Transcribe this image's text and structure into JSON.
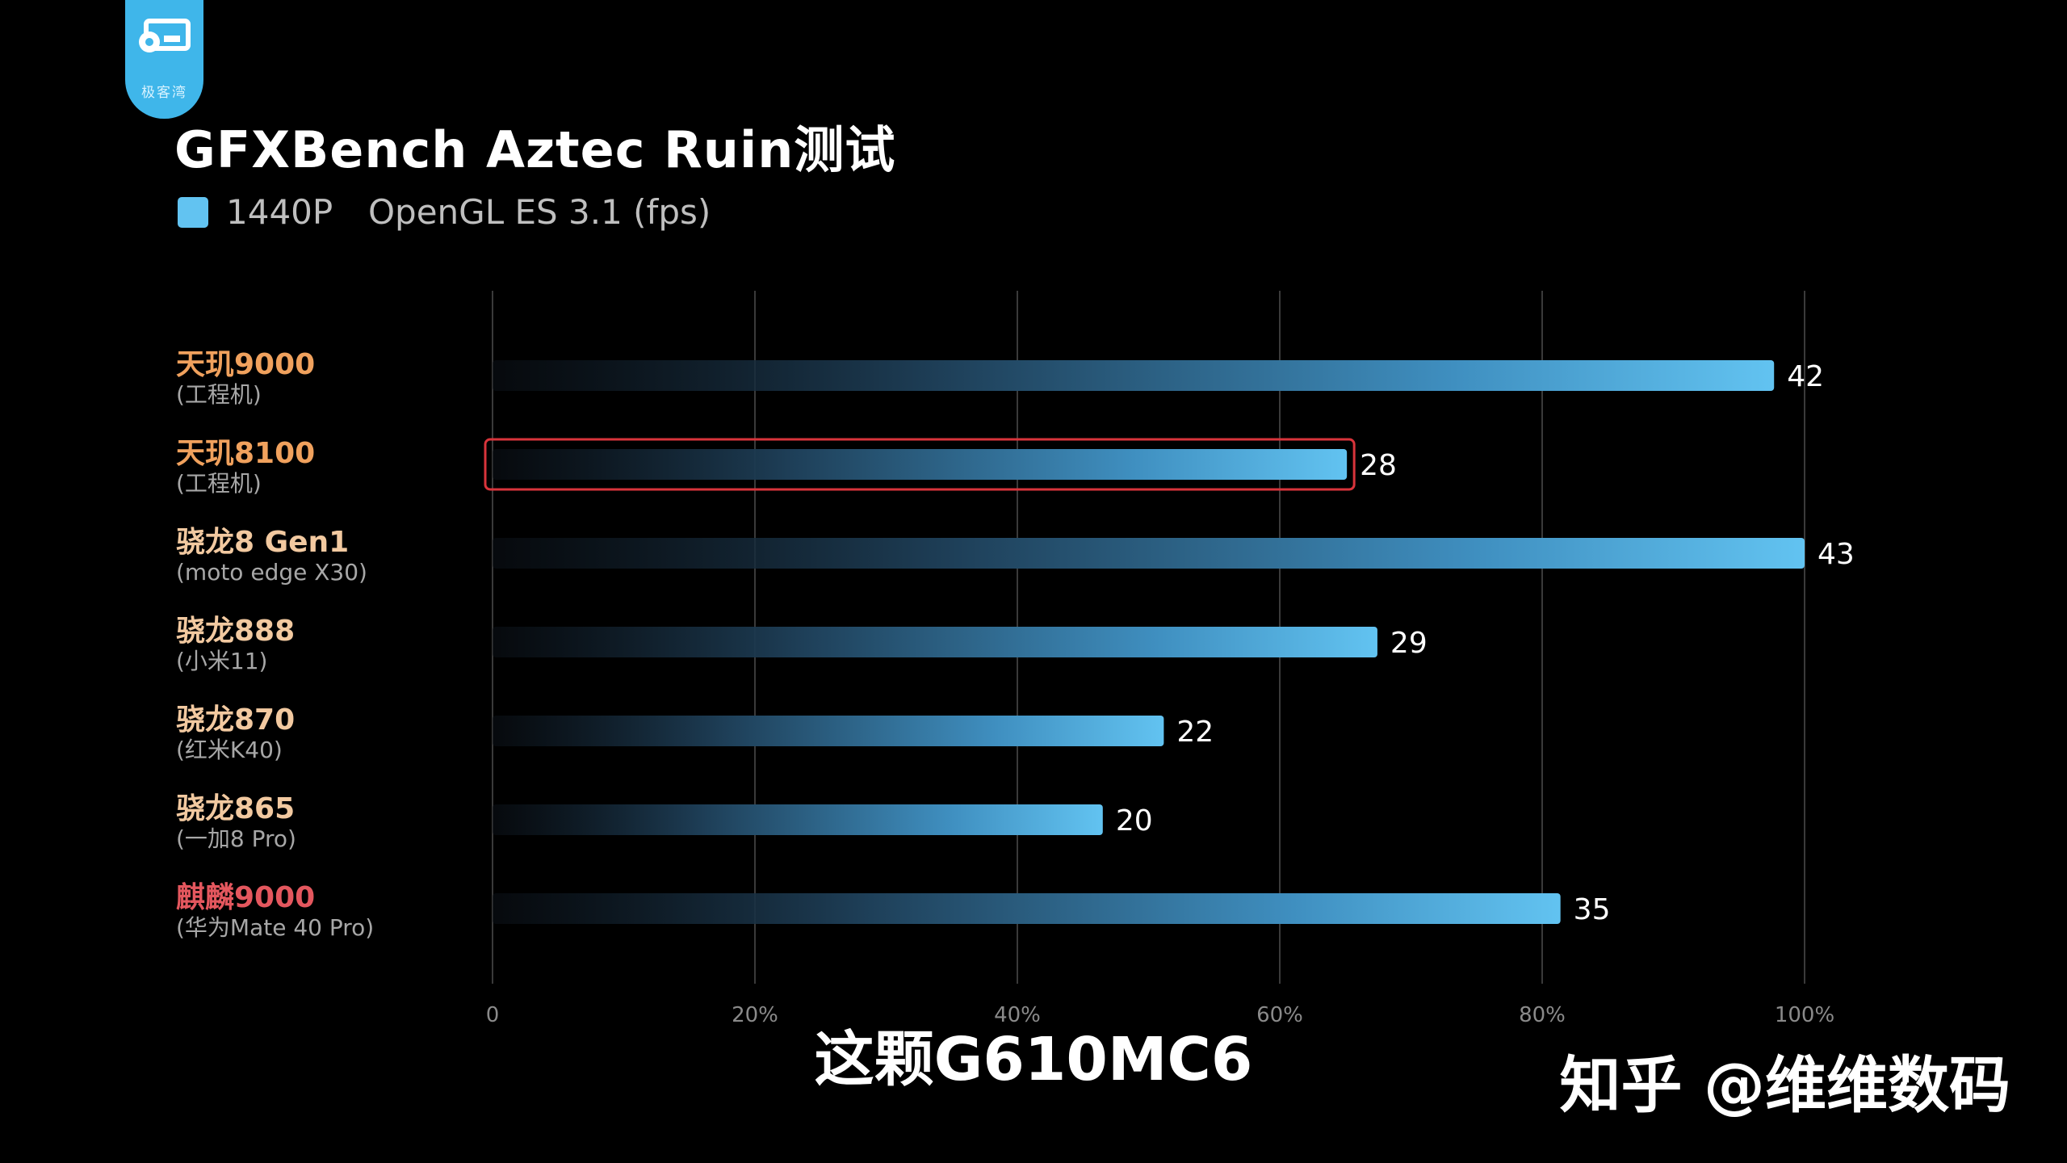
{
  "logo": {
    "text": "极客湾"
  },
  "chart_data": {
    "type": "bar",
    "orientation": "horizontal",
    "title": "GFXBench Aztec Ruin测试",
    "legend": {
      "resolution": "1440P",
      "api": "OpenGL ES 3.1 (fps)",
      "color": "#62c3f1",
      "placement": "top-left"
    },
    "categories": [
      {
        "name": "天玑9000",
        "sub": "(工程机)",
        "value": 42,
        "color": "#f0a15d",
        "highlight": false
      },
      {
        "name": "天玑8100",
        "sub": "(工程机)",
        "value": 28,
        "color": "#f0a15d",
        "highlight": true
      },
      {
        "name": "骁龙8 Gen1",
        "sub": "(moto edge X30)",
        "value": 43,
        "color": "#f2c9a0",
        "highlight": false
      },
      {
        "name": "骁龙888",
        "sub": "(小米11)",
        "value": 29,
        "color": "#f2c9a0",
        "highlight": false
      },
      {
        "name": "骁龙870",
        "sub": "(红米K40)",
        "value": 22,
        "color": "#f2c9a0",
        "highlight": false
      },
      {
        "name": "骁龙865",
        "sub": "(一加8 Pro)",
        "value": 20,
        "color": "#f2c9a0",
        "highlight": false
      },
      {
        "name": "麒麟9000",
        "sub": "(华为Mate 40 Pro)",
        "value": 35,
        "color": "#e4575e",
        "highlight": false
      }
    ],
    "axis_max_value": 43,
    "xticks": [
      "0",
      "20%",
      "40%",
      "60%",
      "80%",
      "100%"
    ],
    "grid": true,
    "bar_color": "#62c3f1",
    "highlight_color": "#d9343b"
  },
  "caption": "这颗G610MC6",
  "watermark": "知乎 @维维数码"
}
